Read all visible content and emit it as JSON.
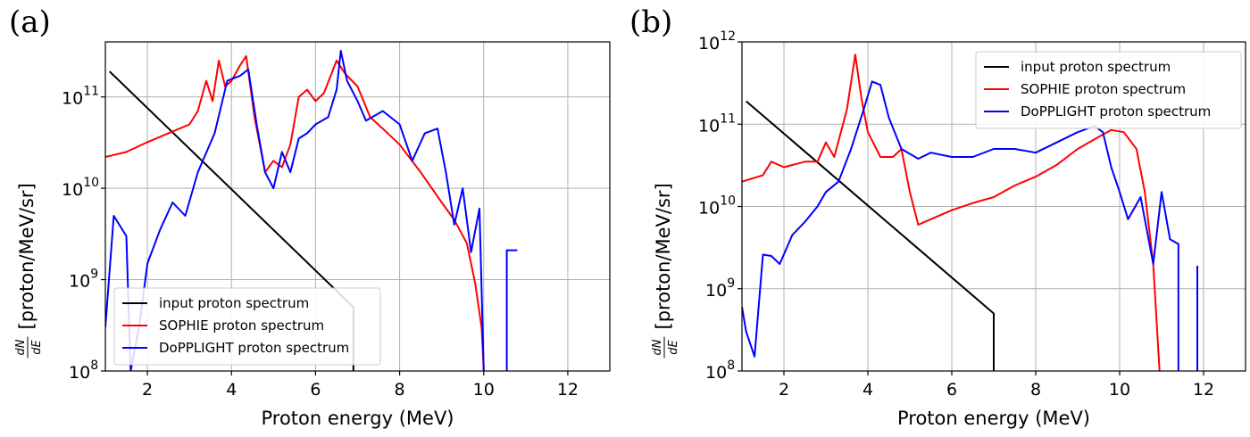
{
  "figure": {
    "panels": [
      "(a)",
      "(b)"
    ]
  },
  "chart_data": [
    {
      "type": "line",
      "panel": "(a)",
      "xlabel": "Proton energy (MeV)",
      "ylabel_fraction": {
        "num": "dN",
        "den": "dE"
      },
      "ylabel": "[proton/MeV/sr]",
      "xlim": [
        1,
        13
      ],
      "ylim": [
        100000000.0,
        400000000000.0
      ],
      "yscale": "log",
      "xticks": [
        2,
        4,
        6,
        8,
        10,
        12
      ],
      "xtick_labels": [
        "2",
        "4",
        "6",
        "8",
        "10",
        "12"
      ],
      "yticks": [
        100000000.0,
        1000000000.0,
        10000000000.0,
        100000000000.0
      ],
      "ytick_labels": [
        {
          "base": "10",
          "exp": "8"
        },
        {
          "base": "10",
          "exp": "9"
        },
        {
          "base": "10",
          "exp": "10"
        },
        {
          "base": "10",
          "exp": "11"
        }
      ],
      "grid": true,
      "legend_position": "lower-left",
      "series": [
        {
          "name": "input proton spectrum",
          "color": "#000000",
          "points": [
            [
              1.1,
              190000000000.0
            ],
            [
              6.9,
              500000000.0
            ],
            [
              6.9,
              100000000.0
            ]
          ]
        },
        {
          "name": "SOPHIE proton spectrum",
          "color": "#ff0000",
          "points": [
            [
              1.0,
              22000000000.0
            ],
            [
              1.5,
              25000000000.0
            ],
            [
              2.0,
              32000000000.0
            ],
            [
              2.5,
              40000000000.0
            ],
            [
              3.0,
              50000000000.0
            ],
            [
              3.2,
              70000000000.0
            ],
            [
              3.4,
              150000000000.0
            ],
            [
              3.55,
              90000000000.0
            ],
            [
              3.7,
              250000000000.0
            ],
            [
              3.85,
              130000000000.0
            ],
            [
              4.0,
              150000000000.0
            ],
            [
              4.2,
              220000000000.0
            ],
            [
              4.35,
              280000000000.0
            ],
            [
              4.55,
              60000000000.0
            ],
            [
              4.8,
              15000000000.0
            ],
            [
              5.0,
              20000000000.0
            ],
            [
              5.2,
              17000000000.0
            ],
            [
              5.4,
              30000000000.0
            ],
            [
              5.6,
              100000000000.0
            ],
            [
              5.8,
              120000000000.0
            ],
            [
              6.0,
              90000000000.0
            ],
            [
              6.2,
              110000000000.0
            ],
            [
              6.5,
              250000000000.0
            ],
            [
              6.7,
              180000000000.0
            ],
            [
              7.0,
              130000000000.0
            ],
            [
              7.3,
              60000000000.0
            ],
            [
              7.6,
              45000000000.0
            ],
            [
              8.0,
              30000000000.0
            ],
            [
              8.5,
              15000000000.0
            ],
            [
              9.0,
              7000000000.0
            ],
            [
              9.3,
              4500000000.0
            ],
            [
              9.6,
              2500000000.0
            ],
            [
              9.8,
              900000000.0
            ],
            [
              9.95,
              300000000.0
            ],
            [
              10.0,
              100000000.0
            ]
          ]
        },
        {
          "name": "DoPPLIGHT proton spectrum",
          "color": "#0000ff",
          "points": [
            [
              1.0,
              300000000.0
            ],
            [
              1.2,
              5000000000.0
            ],
            [
              1.5,
              3000000000.0
            ],
            [
              1.6,
              100000000.0
            ],
            [
              1.8,
              300000000.0
            ],
            [
              2.0,
              1500000000.0
            ],
            [
              2.3,
              3500000000.0
            ],
            [
              2.6,
              7000000000.0
            ],
            [
              2.9,
              5000000000.0
            ],
            [
              3.2,
              15000000000.0
            ],
            [
              3.6,
              40000000000.0
            ],
            [
              3.9,
              150000000000.0
            ],
            [
              4.2,
              170000000000.0
            ],
            [
              4.4,
              200000000000.0
            ],
            [
              4.6,
              50000000000.0
            ],
            [
              4.8,
              15000000000.0
            ],
            [
              5.0,
              10000000000.0
            ],
            [
              5.2,
              25000000000.0
            ],
            [
              5.4,
              15000000000.0
            ],
            [
              5.6,
              35000000000.0
            ],
            [
              5.8,
              40000000000.0
            ],
            [
              6.0,
              50000000000.0
            ],
            [
              6.3,
              60000000000.0
            ],
            [
              6.5,
              120000000000.0
            ],
            [
              6.6,
              320000000000.0
            ],
            [
              6.75,
              150000000000.0
            ],
            [
              7.0,
              90000000000.0
            ],
            [
              7.2,
              55000000000.0
            ],
            [
              7.6,
              70000000000.0
            ],
            [
              8.0,
              50000000000.0
            ],
            [
              8.3,
              20000000000.0
            ],
            [
              8.6,
              40000000000.0
            ],
            [
              8.9,
              45000000000.0
            ],
            [
              9.1,
              15000000000.0
            ],
            [
              9.3,
              4000000000.0
            ],
            [
              9.5,
              10000000000.0
            ],
            [
              9.7,
              2000000000.0
            ],
            [
              9.9,
              6000000000.0
            ],
            [
              10.0,
              100000000.0
            ]
          ]
        },
        {
          "name": "DoPPLIGHT proton spectrum (segment)",
          "color": "#0000ff",
          "points": [
            [
              10.55,
              100000000.0
            ],
            [
              10.55,
              2100000000.0
            ],
            [
              10.8,
              2100000000.0
            ]
          ]
        }
      ]
    },
    {
      "type": "line",
      "panel": "(b)",
      "xlabel": "Proton energy (MeV)",
      "ylabel_fraction": {
        "num": "dN",
        "den": "dE"
      },
      "ylabel": "[proton/MeV/sr]",
      "xlim": [
        1,
        13
      ],
      "ylim": [
        100000000.0,
        1000000000000.0
      ],
      "yscale": "log",
      "xticks": [
        2,
        4,
        6,
        8,
        10,
        12
      ],
      "xtick_labels": [
        "2",
        "4",
        "6",
        "8",
        "10",
        "12"
      ],
      "yticks": [
        100000000.0,
        1000000000.0,
        10000000000.0,
        100000000000.0,
        1000000000000.0
      ],
      "ytick_labels": [
        {
          "base": "10",
          "exp": "8"
        },
        {
          "base": "10",
          "exp": "9"
        },
        {
          "base": "10",
          "exp": "10"
        },
        {
          "base": "10",
          "exp": "11"
        },
        {
          "base": "10",
          "exp": "12"
        }
      ],
      "grid": true,
      "legend_position": "upper-right",
      "series": [
        {
          "name": "input proton spectrum",
          "color": "#000000",
          "points": [
            [
              1.1,
              190000000000.0
            ],
            [
              7.0,
              500000000.0
            ],
            [
              7.0,
              100000000.0
            ]
          ]
        },
        {
          "name": "SOPHIE proton spectrum",
          "color": "#ff0000",
          "points": [
            [
              1.0,
              20000000000.0
            ],
            [
              1.5,
              24000000000.0
            ],
            [
              1.7,
              35000000000.0
            ],
            [
              2.0,
              30000000000.0
            ],
            [
              2.5,
              35000000000.0
            ],
            [
              2.8,
              35000000000.0
            ],
            [
              3.0,
              60000000000.0
            ],
            [
              3.2,
              40000000000.0
            ],
            [
              3.5,
              150000000000.0
            ],
            [
              3.7,
              700000000000.0
            ],
            [
              3.85,
              200000000000.0
            ],
            [
              4.0,
              80000000000.0
            ],
            [
              4.3,
              40000000000.0
            ],
            [
              4.6,
              40000000000.0
            ],
            [
              4.8,
              50000000000.0
            ],
            [
              5.0,
              15000000000.0
            ],
            [
              5.2,
              6000000000.0
            ],
            [
              5.5,
              7000000000.0
            ],
            [
              6.0,
              9000000000.0
            ],
            [
              6.5,
              11000000000.0
            ],
            [
              7.0,
              13000000000.0
            ],
            [
              7.5,
              18000000000.0
            ],
            [
              8.0,
              23000000000.0
            ],
            [
              8.5,
              32000000000.0
            ],
            [
              9.0,
              50000000000.0
            ],
            [
              9.5,
              70000000000.0
            ],
            [
              9.8,
              85000000000.0
            ],
            [
              10.1,
              80000000000.0
            ],
            [
              10.4,
              50000000000.0
            ],
            [
              10.6,
              15000000000.0
            ],
            [
              10.8,
              2000000000.0
            ],
            [
              10.95,
              100000000.0
            ]
          ]
        },
        {
          "name": "DoPPLIGHT proton spectrum",
          "color": "#0000ff",
          "points": [
            [
              1.0,
              600000000.0
            ],
            [
              1.1,
              300000000.0
            ],
            [
              1.3,
              150000000.0
            ],
            [
              1.5,
              2600000000.0
            ],
            [
              1.7,
              2500000000.0
            ],
            [
              1.9,
              2000000000.0
            ],
            [
              2.2,
              4500000000.0
            ],
            [
              2.5,
              6500000000.0
            ],
            [
              2.8,
              10000000000.0
            ],
            [
              3.0,
              15000000000.0
            ],
            [
              3.3,
              20000000000.0
            ],
            [
              3.6,
              50000000000.0
            ],
            [
              3.9,
              150000000000.0
            ],
            [
              4.1,
              330000000000.0
            ],
            [
              4.3,
              300000000000.0
            ],
            [
              4.5,
              120000000000.0
            ],
            [
              4.8,
              50000000000.0
            ],
            [
              5.2,
              38000000000.0
            ],
            [
              5.5,
              45000000000.0
            ],
            [
              6.0,
              40000000000.0
            ],
            [
              6.5,
              40000000000.0
            ],
            [
              7.0,
              50000000000.0
            ],
            [
              7.5,
              50000000000.0
            ],
            [
              8.0,
              45000000000.0
            ],
            [
              8.5,
              60000000000.0
            ],
            [
              9.0,
              80000000000.0
            ],
            [
              9.4,
              95000000000.0
            ],
            [
              9.6,
              80000000000.0
            ],
            [
              9.8,
              30000000000.0
            ],
            [
              10.0,
              15000000000.0
            ],
            [
              10.2,
              7000000000.0
            ],
            [
              10.5,
              13000000000.0
            ],
            [
              10.8,
              2000000000.0
            ],
            [
              11.0,
              15000000000.0
            ],
            [
              11.2,
              4000000000.0
            ],
            [
              11.4,
              3500000000.0
            ],
            [
              11.4,
              100000000.0
            ]
          ]
        },
        {
          "name": "DoPPLIGHT proton spectrum (segment)",
          "color": "#0000ff",
          "points": [
            [
              11.85,
              100000000.0
            ],
            [
              11.85,
              1900000000.0
            ]
          ]
        }
      ]
    }
  ]
}
